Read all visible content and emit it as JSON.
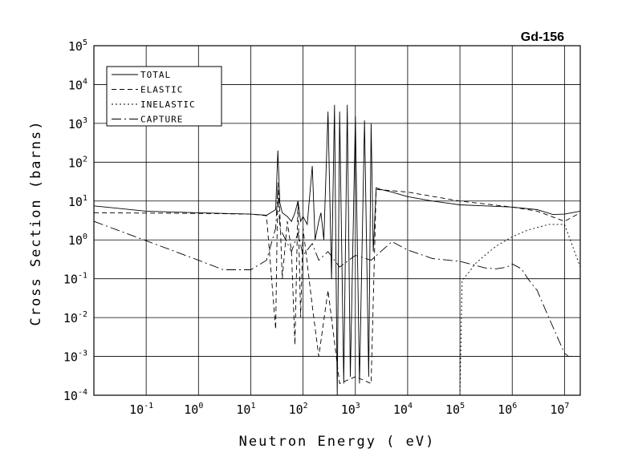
{
  "chart_data": {
    "type": "line",
    "title": "Gd-156",
    "xlabel": "Neutron Energy ( eV)",
    "ylabel": "Cross Section (barns)",
    "xscale": "log",
    "yscale": "log",
    "xlim": [
      0.01,
      20000000
    ],
    "ylim": [
      0.0001,
      100000
    ],
    "grid": true,
    "legend_position": "top-left",
    "x_ticks": [
      {
        "base": "10",
        "exp": "-1",
        "value": 0.1
      },
      {
        "base": "10",
        "exp": "0",
        "value": 1
      },
      {
        "base": "10",
        "exp": "1",
        "value": 10
      },
      {
        "base": "10",
        "exp": "2",
        "value": 100
      },
      {
        "base": "10",
        "exp": "3",
        "value": 1000
      },
      {
        "base": "10",
        "exp": "4",
        "value": 10000
      },
      {
        "base": "10",
        "exp": "5",
        "value": 100000
      },
      {
        "base": "10",
        "exp": "6",
        "value": 1000000
      },
      {
        "base": "10",
        "exp": "7",
        "value": 10000000
      }
    ],
    "y_ticks": [
      {
        "base": "10",
        "exp": "5",
        "value": 100000
      },
      {
        "base": "10",
        "exp": "4",
        "value": 10000
      },
      {
        "base": "10",
        "exp": "3",
        "value": 1000
      },
      {
        "base": "10",
        "exp": "2",
        "value": 100
      },
      {
        "base": "10",
        "exp": "1",
        "value": 10
      },
      {
        "base": "10",
        "exp": "0",
        "value": 1
      },
      {
        "base": "10",
        "exp": "-1",
        "value": 0.1
      },
      {
        "base": "10",
        "exp": "-2",
        "value": 0.01
      },
      {
        "base": "10",
        "exp": "-3",
        "value": 0.001
      },
      {
        "base": "10",
        "exp": "-4",
        "value": 0.0001
      }
    ],
    "series": [
      {
        "name": "TOTAL",
        "style": "solid",
        "x": [
          0.01,
          0.1,
          1,
          10,
          20,
          30,
          33,
          36,
          40,
          50,
          60,
          70,
          80,
          90,
          100,
          120,
          150,
          170,
          200,
          220,
          250,
          300,
          350,
          400,
          450,
          500,
          600,
          700,
          800,
          1000,
          1200,
          1500,
          1800,
          2000,
          2200,
          2500,
          3000,
          5000,
          10000,
          30000,
          100000,
          300000,
          1000000,
          3000000,
          6000000,
          10000000,
          20000000
        ],
        "y": [
          7.5,
          5.5,
          5.0,
          4.6,
          4.3,
          6,
          200,
          9,
          5,
          4,
          3,
          5,
          10,
          3,
          4,
          2.5,
          80,
          1,
          3,
          5,
          1,
          2000,
          0.1,
          3000,
          0.0001,
          2000,
          0.0002,
          3000,
          0.0003,
          1500,
          0.0002,
          1200,
          0.0003,
          1000,
          0.5,
          22,
          20,
          17,
          13,
          10,
          8,
          7.5,
          7,
          6,
          4.5,
          4.6,
          5.5
        ]
      },
      {
        "name": "ELASTIC",
        "style": "dashed",
        "x": [
          0.01,
          0.1,
          1,
          10,
          20,
          30,
          33,
          36,
          40,
          50,
          60,
          70,
          80,
          90,
          100,
          150,
          200,
          300,
          500,
          1000,
          2000,
          2500,
          10000,
          100000,
          1000000,
          3000000,
          10000000,
          20000000
        ],
        "y": [
          5,
          4.9,
          4.8,
          4.6,
          4.2,
          0.005,
          30,
          5,
          0.1,
          3,
          0.5,
          0.002,
          10,
          0.01,
          2,
          0.02,
          0.001,
          0.05,
          0.0002,
          0.0003,
          0.0002,
          20,
          17,
          10,
          7,
          5.5,
          3,
          5
        ]
      },
      {
        "name": "INELASTIC",
        "style": "dotted",
        "x": [
          100000,
          110000,
          150000,
          200000,
          300000,
          500000,
          1000000,
          2000000,
          5000000,
          10000000,
          20000000
        ],
        "y": [
          0.0001,
          0.09,
          0.15,
          0.25,
          0.4,
          0.7,
          1.2,
          1.8,
          2.5,
          2.5,
          0.2
        ]
      },
      {
        "name": "CAPTURE",
        "style": "dash-dot",
        "x": [
          0.01,
          0.1,
          1,
          3,
          10,
          20,
          30,
          33,
          36,
          60,
          80,
          100,
          150,
          200,
          300,
          500,
          1000,
          2000,
          5000,
          10000,
          30000,
          100000,
          200000,
          300000,
          500000,
          800000,
          1000000,
          1500000,
          2000000,
          3000000,
          5000000,
          10000000,
          12000000,
          20000000
        ],
        "y": [
          3.0,
          0.95,
          0.3,
          0.17,
          0.17,
          0.3,
          2,
          20,
          2,
          0.5,
          1.5,
          0.4,
          0.8,
          0.3,
          0.5,
          0.2,
          0.4,
          0.3,
          0.9,
          0.55,
          0.33,
          0.28,
          0.22,
          0.19,
          0.18,
          0.2,
          0.24,
          0.18,
          0.1,
          0.05,
          0.01,
          0.0012,
          0.001,
          0.001
        ]
      }
    ]
  }
}
